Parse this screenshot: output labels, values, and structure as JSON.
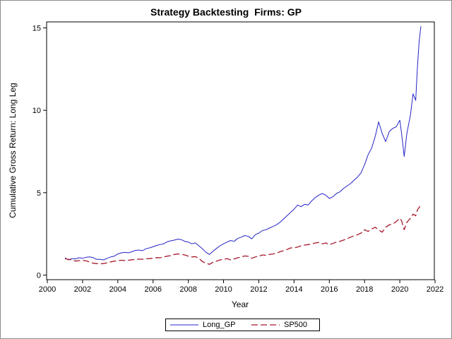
{
  "chart_data": {
    "type": "line",
    "title": "Strategy Backtesting  Firms: GP",
    "xlabel": "Year",
    "ylabel": "Cumulative Gross Return: Long Leg",
    "xlim": [
      2000,
      2022
    ],
    "ylim": [
      0,
      15.5
    ],
    "xticks": [
      "2000",
      "2002",
      "2004",
      "2006",
      "2008",
      "2010",
      "2012",
      "2014",
      "2016",
      "2018",
      "2020",
      "2022"
    ],
    "yticks": [
      "0",
      "5",
      "10",
      "15"
    ],
    "legend_position": "bottom-center",
    "series": [
      {
        "name": "Long_GP",
        "color": "#2424c8",
        "style": "solid",
        "points": [
          [
            2001.0,
            1.05
          ],
          [
            2001.2,
            0.92
          ],
          [
            2001.4,
            1.0
          ],
          [
            2001.6,
            0.98
          ],
          [
            2001.8,
            1.05
          ],
          [
            2002.0,
            1.02
          ],
          [
            2002.2,
            1.08
          ],
          [
            2002.4,
            1.1
          ],
          [
            2002.6,
            1.06
          ],
          [
            2002.8,
            0.95
          ],
          [
            2003.0,
            0.95
          ],
          [
            2003.2,
            0.92
          ],
          [
            2003.4,
            1.02
          ],
          [
            2003.6,
            1.1
          ],
          [
            2003.8,
            1.15
          ],
          [
            2004.0,
            1.28
          ],
          [
            2004.2,
            1.35
          ],
          [
            2004.4,
            1.38
          ],
          [
            2004.6,
            1.35
          ],
          [
            2004.8,
            1.42
          ],
          [
            2005.0,
            1.5
          ],
          [
            2005.2,
            1.52
          ],
          [
            2005.4,
            1.48
          ],
          [
            2005.6,
            1.6
          ],
          [
            2005.8,
            1.65
          ],
          [
            2006.0,
            1.72
          ],
          [
            2006.2,
            1.8
          ],
          [
            2006.4,
            1.85
          ],
          [
            2006.6,
            1.9
          ],
          [
            2006.8,
            2.02
          ],
          [
            2007.0,
            2.08
          ],
          [
            2007.2,
            2.12
          ],
          [
            2007.4,
            2.18
          ],
          [
            2007.6,
            2.15
          ],
          [
            2007.8,
            2.05
          ],
          [
            2008.0,
            2.0
          ],
          [
            2008.2,
            1.9
          ],
          [
            2008.4,
            1.95
          ],
          [
            2008.6,
            1.78
          ],
          [
            2008.8,
            1.6
          ],
          [
            2009.0,
            1.38
          ],
          [
            2009.2,
            1.25
          ],
          [
            2009.4,
            1.45
          ],
          [
            2009.6,
            1.62
          ],
          [
            2009.8,
            1.78
          ],
          [
            2010.0,
            1.9
          ],
          [
            2010.2,
            2.0
          ],
          [
            2010.4,
            2.1
          ],
          [
            2010.6,
            2.05
          ],
          [
            2010.8,
            2.22
          ],
          [
            2011.0,
            2.3
          ],
          [
            2011.2,
            2.4
          ],
          [
            2011.4,
            2.35
          ],
          [
            2011.6,
            2.2
          ],
          [
            2011.8,
            2.45
          ],
          [
            2012.0,
            2.55
          ],
          [
            2012.2,
            2.7
          ],
          [
            2012.4,
            2.75
          ],
          [
            2012.6,
            2.85
          ],
          [
            2012.8,
            2.95
          ],
          [
            2013.0,
            3.05
          ],
          [
            2013.2,
            3.2
          ],
          [
            2013.4,
            3.4
          ],
          [
            2013.6,
            3.6
          ],
          [
            2013.8,
            3.8
          ],
          [
            2014.0,
            4.0
          ],
          [
            2014.2,
            4.25
          ],
          [
            2014.4,
            4.15
          ],
          [
            2014.6,
            4.3
          ],
          [
            2014.8,
            4.25
          ],
          [
            2015.0,
            4.5
          ],
          [
            2015.2,
            4.7
          ],
          [
            2015.4,
            4.85
          ],
          [
            2015.6,
            4.95
          ],
          [
            2015.8,
            4.85
          ],
          [
            2016.0,
            4.65
          ],
          [
            2016.2,
            4.75
          ],
          [
            2016.4,
            4.95
          ],
          [
            2016.6,
            5.05
          ],
          [
            2016.8,
            5.25
          ],
          [
            2017.0,
            5.4
          ],
          [
            2017.2,
            5.55
          ],
          [
            2017.4,
            5.75
          ],
          [
            2017.6,
            5.95
          ],
          [
            2017.8,
            6.2
          ],
          [
            2018.0,
            6.7
          ],
          [
            2018.2,
            7.3
          ],
          [
            2018.4,
            7.7
          ],
          [
            2018.6,
            8.4
          ],
          [
            2018.8,
            9.3
          ],
          [
            2019.0,
            8.6
          ],
          [
            2019.2,
            8.1
          ],
          [
            2019.4,
            8.7
          ],
          [
            2019.6,
            8.9
          ],
          [
            2019.8,
            9.0
          ],
          [
            2020.0,
            9.4
          ],
          [
            2020.1,
            8.6
          ],
          [
            2020.25,
            7.2
          ],
          [
            2020.4,
            8.6
          ],
          [
            2020.6,
            9.7
          ],
          [
            2020.75,
            11.0
          ],
          [
            2020.9,
            10.6
          ],
          [
            2021.0,
            12.6
          ],
          [
            2021.1,
            14.2
          ],
          [
            2021.2,
            15.1
          ]
        ]
      },
      {
        "name": "SP500",
        "color": "#a5182a",
        "style": "dashed",
        "points": [
          [
            2001.0,
            1.0
          ],
          [
            2001.2,
            0.95
          ],
          [
            2001.4,
            0.93
          ],
          [
            2001.6,
            0.85
          ],
          [
            2001.8,
            0.88
          ],
          [
            2002.0,
            0.9
          ],
          [
            2002.2,
            0.86
          ],
          [
            2002.4,
            0.8
          ],
          [
            2002.6,
            0.72
          ],
          [
            2002.8,
            0.7
          ],
          [
            2003.0,
            0.68
          ],
          [
            2003.2,
            0.7
          ],
          [
            2003.4,
            0.75
          ],
          [
            2003.6,
            0.8
          ],
          [
            2003.8,
            0.84
          ],
          [
            2004.0,
            0.88
          ],
          [
            2004.2,
            0.9
          ],
          [
            2004.4,
            0.88
          ],
          [
            2004.6,
            0.9
          ],
          [
            2004.8,
            0.93
          ],
          [
            2005.0,
            0.95
          ],
          [
            2005.2,
            0.97
          ],
          [
            2005.4,
            0.96
          ],
          [
            2005.6,
            0.99
          ],
          [
            2005.8,
            1.0
          ],
          [
            2006.0,
            1.03
          ],
          [
            2006.2,
            1.06
          ],
          [
            2006.4,
            1.05
          ],
          [
            2006.6,
            1.1
          ],
          [
            2006.8,
            1.15
          ],
          [
            2007.0,
            1.18
          ],
          [
            2007.2,
            1.25
          ],
          [
            2007.4,
            1.28
          ],
          [
            2007.6,
            1.26
          ],
          [
            2007.8,
            1.22
          ],
          [
            2008.0,
            1.15
          ],
          [
            2008.2,
            1.1
          ],
          [
            2008.4,
            1.12
          ],
          [
            2008.6,
            1.02
          ],
          [
            2008.8,
            0.82
          ],
          [
            2009.0,
            0.72
          ],
          [
            2009.2,
            0.65
          ],
          [
            2009.4,
            0.78
          ],
          [
            2009.6,
            0.85
          ],
          [
            2009.8,
            0.92
          ],
          [
            2010.0,
            0.95
          ],
          [
            2010.2,
            1.0
          ],
          [
            2010.4,
            0.92
          ],
          [
            2010.6,
            0.98
          ],
          [
            2010.8,
            1.05
          ],
          [
            2011.0,
            1.1
          ],
          [
            2011.2,
            1.16
          ],
          [
            2011.4,
            1.14
          ],
          [
            2011.6,
            1.02
          ],
          [
            2011.8,
            1.1
          ],
          [
            2012.0,
            1.15
          ],
          [
            2012.2,
            1.22
          ],
          [
            2012.4,
            1.2
          ],
          [
            2012.6,
            1.25
          ],
          [
            2012.8,
            1.28
          ],
          [
            2013.0,
            1.32
          ],
          [
            2013.2,
            1.42
          ],
          [
            2013.4,
            1.48
          ],
          [
            2013.6,
            1.55
          ],
          [
            2013.8,
            1.65
          ],
          [
            2014.0,
            1.65
          ],
          [
            2014.2,
            1.7
          ],
          [
            2014.4,
            1.78
          ],
          [
            2014.6,
            1.82
          ],
          [
            2014.8,
            1.85
          ],
          [
            2015.0,
            1.88
          ],
          [
            2015.2,
            1.95
          ],
          [
            2015.4,
            1.98
          ],
          [
            2015.6,
            1.9
          ],
          [
            2015.8,
            1.95
          ],
          [
            2016.0,
            1.85
          ],
          [
            2016.2,
            1.92
          ],
          [
            2016.4,
            2.0
          ],
          [
            2016.6,
            2.05
          ],
          [
            2016.8,
            2.12
          ],
          [
            2017.0,
            2.2
          ],
          [
            2017.2,
            2.3
          ],
          [
            2017.4,
            2.38
          ],
          [
            2017.6,
            2.45
          ],
          [
            2017.8,
            2.55
          ],
          [
            2018.0,
            2.75
          ],
          [
            2018.2,
            2.65
          ],
          [
            2018.4,
            2.8
          ],
          [
            2018.6,
            2.9
          ],
          [
            2018.8,
            2.75
          ],
          [
            2019.0,
            2.6
          ],
          [
            2019.2,
            2.9
          ],
          [
            2019.4,
            3.05
          ],
          [
            2019.6,
            3.1
          ],
          [
            2019.8,
            3.25
          ],
          [
            2020.0,
            3.45
          ],
          [
            2020.1,
            3.3
          ],
          [
            2020.25,
            2.75
          ],
          [
            2020.4,
            3.2
          ],
          [
            2020.6,
            3.45
          ],
          [
            2020.75,
            3.7
          ],
          [
            2020.9,
            3.6
          ],
          [
            2021.0,
            3.95
          ],
          [
            2021.1,
            4.1
          ],
          [
            2021.2,
            4.25
          ]
        ]
      }
    ]
  }
}
